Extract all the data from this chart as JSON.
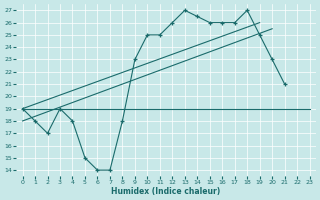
{
  "xlabel": "Humidex (Indice chaleur)",
  "xlim": [
    -0.5,
    23.5
  ],
  "ylim": [
    13.5,
    27.5
  ],
  "yticks": [
    14,
    15,
    16,
    17,
    18,
    19,
    20,
    21,
    22,
    23,
    24,
    25,
    26,
    27
  ],
  "xticks": [
    0,
    1,
    2,
    3,
    4,
    5,
    6,
    7,
    8,
    9,
    10,
    11,
    12,
    13,
    14,
    15,
    16,
    17,
    18,
    19,
    20,
    21,
    22,
    23
  ],
  "bg_color": "#c8e8e8",
  "line_color": "#1a6b6b",
  "series1_x": [
    0,
    1,
    2,
    3,
    4,
    5,
    6,
    7,
    8,
    9,
    10,
    11,
    12,
    13,
    14,
    15,
    16,
    17,
    18,
    19,
    20,
    21
  ],
  "series1_y": [
    19,
    18,
    17,
    19,
    18,
    15,
    14,
    14,
    18,
    23,
    25,
    25,
    26,
    27,
    26.5,
    26,
    26,
    26,
    27,
    25,
    23,
    21
  ],
  "series2_x": [
    0,
    3,
    8,
    9,
    10,
    11,
    12,
    13,
    14,
    15,
    16,
    17,
    18,
    19,
    20,
    21,
    22,
    23
  ],
  "series2_y": [
    19,
    19,
    19,
    19,
    19,
    19,
    19,
    19,
    19,
    19,
    19,
    19,
    19,
    19,
    19,
    19,
    19,
    19
  ],
  "trend1_x": [
    0,
    19
  ],
  "trend1_y": [
    19,
    26
  ],
  "trend2_x": [
    0,
    20
  ],
  "trend2_y": [
    18,
    25.5
  ]
}
